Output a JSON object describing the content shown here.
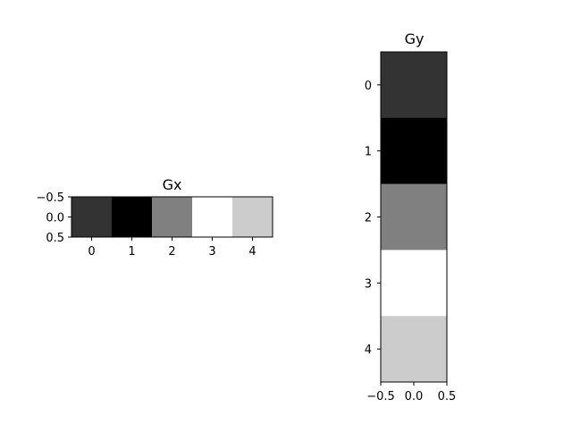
{
  "chart_data": [
    {
      "type": "heatmap",
      "title": "Gx",
      "orientation": "row",
      "colormap": "gray",
      "xlabel": "",
      "ylabel": "",
      "x_categories": [
        "0",
        "1",
        "2",
        "3",
        "4"
      ],
      "values": [
        [
          0.2,
          0.0,
          0.5,
          1.0,
          0.8
        ]
      ],
      "x_ticks": [
        "0",
        "1",
        "2",
        "3",
        "4"
      ],
      "y_ticks": [
        "−0.5",
        "0.0",
        "0.5"
      ],
      "xlim": [
        -0.5,
        4.5
      ],
      "ylim": [
        0.5,
        -0.5
      ],
      "grid": false
    },
    {
      "type": "heatmap",
      "title": "Gy",
      "orientation": "column",
      "colormap": "gray",
      "xlabel": "",
      "ylabel": "",
      "y_categories": [
        "0",
        "1",
        "2",
        "3",
        "4"
      ],
      "values": [
        [
          0.2
        ],
        [
          0.0
        ],
        [
          0.5
        ],
        [
          1.0
        ],
        [
          0.8
        ]
      ],
      "x_ticks": [
        "−0.5",
        "0.0",
        "0.5"
      ],
      "y_ticks": [
        "0",
        "1",
        "2",
        "3",
        "4"
      ],
      "xlim": [
        -0.5,
        0.5
      ],
      "ylim": [
        4.5,
        -0.5
      ],
      "grid": false
    }
  ]
}
